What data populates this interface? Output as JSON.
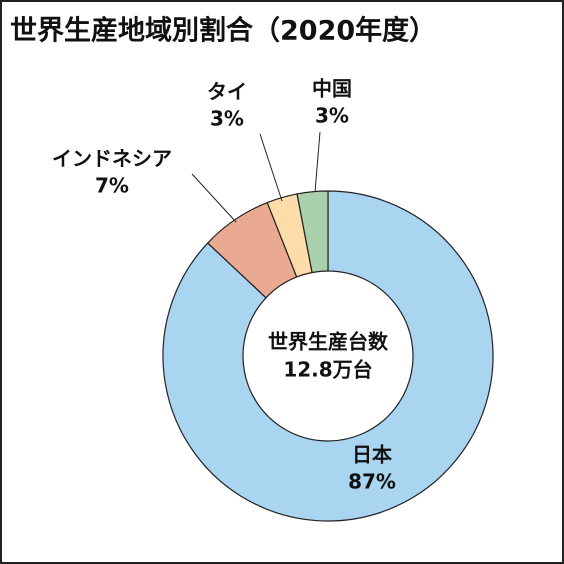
{
  "chart_data": {
    "type": "donut",
    "title": "世界生産地域別割合（2020年度）",
    "center_label": [
      "世界生産台数",
      "12.8万台"
    ],
    "categories": [
      "日本",
      "インドネシア",
      "タイ",
      "中国"
    ],
    "values": [
      87,
      7,
      3,
      3
    ],
    "value_labels": [
      "87%",
      "7%",
      "3%",
      "3%"
    ],
    "colors": [
      "#a9d5f1",
      "#eaa991",
      "#fcdcaa",
      "#a9d1ab"
    ]
  }
}
